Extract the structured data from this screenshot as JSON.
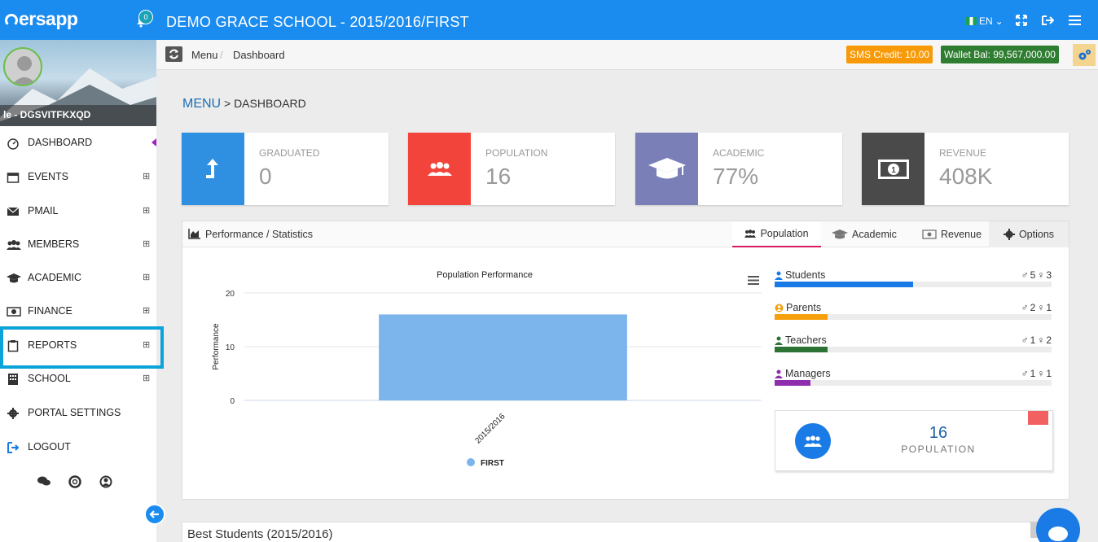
{
  "app": {
    "brand": "ersapp",
    "notifications": "0",
    "school_title": "DEMO GRACE SCHOOL - 2015/2016/FIRST",
    "lang": "EN"
  },
  "colors": {
    "primary": "#1a8cf0",
    "graduated": "#2f8fe0",
    "population": "#f2443a",
    "academic": "#7a7fb8",
    "revenue": "#4a4a4a",
    "sms": "#f89a07",
    "wallet": "#2f7d31",
    "highlight": "#0ba3d9"
  },
  "sidebar": {
    "username": "le - DGSVITFKXQD",
    "items": [
      {
        "label": "DASHBOARD",
        "icon": "dashboard-gauge-icon",
        "expandable": false
      },
      {
        "label": "EVENTS",
        "icon": "calendar-icon",
        "expandable": true
      },
      {
        "label": "PMAIL",
        "icon": "envelope-icon",
        "expandable": true
      },
      {
        "label": "MEMBERS",
        "icon": "users-icon",
        "expandable": true
      },
      {
        "label": "ACADEMIC",
        "icon": "graduation-cap-icon",
        "expandable": true
      },
      {
        "label": "FINANCE",
        "icon": "money-icon",
        "expandable": true
      },
      {
        "label": "REPORTS",
        "icon": "clipboard-icon",
        "expandable": true
      },
      {
        "label": "SCHOOL",
        "icon": "building-icon",
        "expandable": true
      },
      {
        "label": "PORTAL SETTINGS",
        "icon": "cog-icon",
        "expandable": false
      },
      {
        "label": "LOGOUT",
        "icon": "sign-out-icon",
        "expandable": false
      }
    ],
    "expand_symbol": "⊞"
  },
  "breadcrumb": {
    "menu": "Menu",
    "sep": "/",
    "current": "Dashboard"
  },
  "badges": {
    "sms": "SMS Credit: 10.00",
    "wallet": "Wallet Bal: 99,567,000.00"
  },
  "page": {
    "menu": "MENU",
    "rest": "> DASHBOARD"
  },
  "cards": [
    {
      "title": "GRADUATED",
      "value": "0",
      "icon": "level-up-icon"
    },
    {
      "title": "POPULATION",
      "value": "16",
      "icon": "users-icon"
    },
    {
      "title": "ACADEMIC",
      "value": "77%",
      "icon": "graduation-cap-icon"
    },
    {
      "title": "REVENUE",
      "value": "408K",
      "icon": "money-icon"
    }
  ],
  "panel": {
    "title": "Performance / Statistics",
    "tabs": {
      "population": "Population",
      "academic": "Academic",
      "revenue": "Revenue",
      "options": "Options"
    }
  },
  "chart_data": {
    "type": "bar",
    "title": "Population Performance",
    "ylabel": "Performance",
    "xlabel": "",
    "categories": [
      "2015/2016"
    ],
    "series": [
      {
        "name": "FIRST",
        "values": [
          16
        ],
        "color": "#7cb5ec"
      }
    ],
    "ylim": [
      0,
      20
    ],
    "yticks": [
      0,
      10,
      20
    ],
    "grid": true,
    "legend": "bottom"
  },
  "stats": [
    {
      "label": "Students",
      "male": "5",
      "female": "3",
      "fill": 0.5,
      "color": "#1a7be6"
    },
    {
      "label": "Parents",
      "male": "2",
      "female": "1",
      "fill": 0.19,
      "color": "#f5a00c"
    },
    {
      "label": "Teachers",
      "male": "1",
      "female": "2",
      "fill": 0.19,
      "color": "#2d7235"
    },
    {
      "label": "Managers",
      "male": "1",
      "female": "1",
      "fill": 0.13,
      "color": "#8e2eac"
    }
  ],
  "population_box": {
    "value": "16",
    "label": "POPULATION"
  },
  "best_students": {
    "title": "Best Students (2015/2016)"
  }
}
